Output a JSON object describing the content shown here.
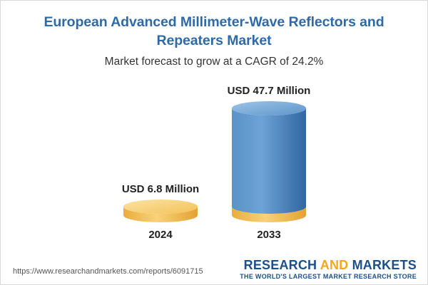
{
  "header": {
    "title": "European Advanced Millimeter-Wave Reflectors and Repeaters Market",
    "subtitle": "Market forecast to grow at a CAGR of 24.2%"
  },
  "chart_data": {
    "type": "bar",
    "categories": [
      "2024",
      "2033"
    ],
    "values": [
      6.8,
      47.7
    ],
    "value_labels": [
      "USD 6.8 Million",
      "USD 47.7 Million"
    ],
    "unit": "USD Million",
    "colors": {
      "base_gold": "#f5c55a",
      "column_blue": "#4d86bd"
    }
  },
  "footer": {
    "url": "https://www.researchandmarkets.com/reports/6091715",
    "brand_part1": "RESEARCH ",
    "brand_part2": "AND",
    "brand_part3": " MARKETS",
    "tagline": "THE WORLD'S LARGEST MARKET RESEARCH STORE"
  }
}
